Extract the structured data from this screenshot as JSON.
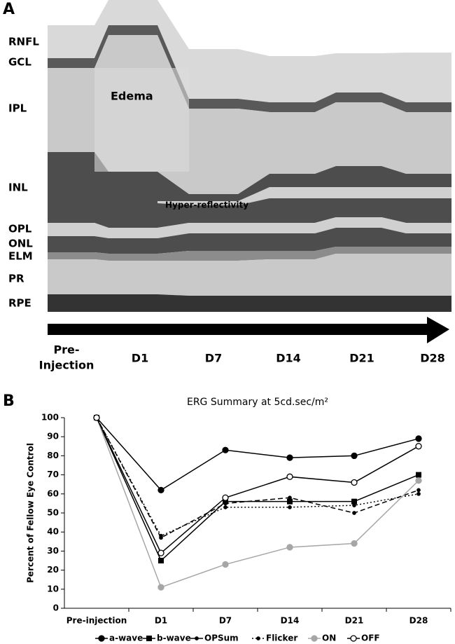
{
  "panel_a": {
    "panel_label": "A",
    "layers": [
      "RNFL",
      "GCL",
      "IPL",
      "INL",
      "OPL",
      "ONL",
      "ELM",
      "PR",
      "RPE"
    ],
    "annotations": [
      "Edema",
      "Hyper-reflectivity"
    ],
    "timepoints": [
      [
        "Pre-",
        "Injection"
      ],
      [
        "D1"
      ],
      [
        "D7"
      ],
      [
        "D14"
      ],
      [
        "D21"
      ],
      [
        "D28"
      ]
    ]
  },
  "chart_data": {
    "type": "line",
    "panel_label": "B",
    "title": "ERG Summary at 5cd.sec/m²",
    "y_label": "Percent of Fellow Eye Control",
    "categories": [
      "Pre-injection",
      "D1",
      "D7",
      "D14",
      "D21",
      "D28"
    ],
    "series": [
      {
        "name": "a-wave",
        "color": "#000000",
        "dash": "solid",
        "marker": "circle",
        "values": [
          100,
          62,
          83,
          79,
          80,
          89
        ]
      },
      {
        "name": "b-wave",
        "color": "#000000",
        "dash": "solid",
        "marker": "square",
        "values": [
          100,
          25,
          56,
          56,
          56,
          70
        ]
      },
      {
        "name": "OPSum",
        "color": "#000000",
        "dash": "dashed",
        "marker": "dot",
        "values": [
          100,
          37,
          55,
          58,
          50,
          62
        ]
      },
      {
        "name": "Flicker",
        "color": "#000000",
        "dash": "dotted",
        "marker": "dot",
        "values": [
          100,
          38,
          53,
          53,
          54,
          60
        ]
      },
      {
        "name": "ON",
        "color": "#a6a6a6",
        "dash": "solid",
        "marker": "circle",
        "values": [
          100,
          11,
          23,
          32,
          34,
          67
        ]
      },
      {
        "name": "OFF",
        "color": "#000000",
        "dash": "solid",
        "marker": "open-circle",
        "values": [
          100,
          29,
          58,
          69,
          66,
          85
        ]
      }
    ],
    "ylim": [
      0,
      100
    ],
    "yticks": [
      0,
      10,
      20,
      30,
      40,
      50,
      60,
      70,
      80,
      90,
      100
    ]
  }
}
